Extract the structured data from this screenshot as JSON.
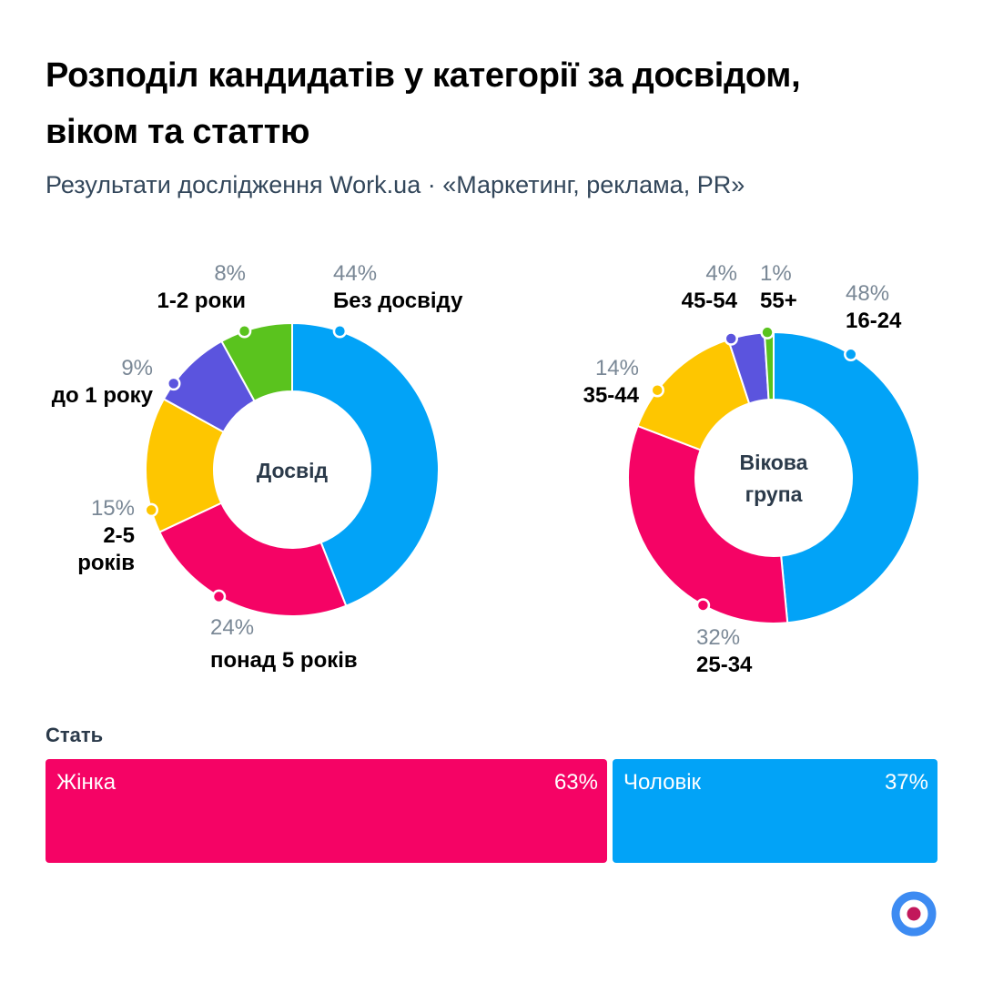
{
  "title_line1": "Розподіл кандидатів у категорії за досвідом,",
  "title_line2": "віком та статтю",
  "subtitle": "Результати дослідження Work.ua · «Маркетинг, реклама, PR»",
  "colors": {
    "blue": "#02A3F7",
    "pink": "#F50365",
    "yellow": "#FEC600",
    "purple": "#5B54DE",
    "green": "#5AC31E"
  },
  "chart_data": [
    {
      "type": "pie",
      "title": "Досвід",
      "categories": [
        "Без досвіду",
        "понад 5 років",
        "2-5 років",
        "до 1 року",
        "1-2 роки"
      ],
      "values": [
        44,
        24,
        15,
        9,
        8
      ],
      "labels": [
        "44%",
        "24%",
        "15%",
        "9%",
        "8%"
      ],
      "colors": [
        "#02A3F7",
        "#F50365",
        "#FEC600",
        "#5B54DE",
        "#5AC31E"
      ]
    },
    {
      "type": "pie",
      "title": "Вікова група",
      "categories": [
        "16-24",
        "25-34",
        "35-44",
        "45-54",
        "55+"
      ],
      "values": [
        48,
        32,
        14,
        4,
        1
      ],
      "labels": [
        "48%",
        "32%",
        "14%",
        "4%",
        "1%"
      ],
      "colors": [
        "#02A3F7",
        "#F50365",
        "#FEC600",
        "#5B54DE",
        "#5AC31E"
      ]
    },
    {
      "type": "bar",
      "title": "Стать",
      "categories": [
        "Жінка",
        "Чоловік"
      ],
      "values": [
        63,
        37
      ],
      "labels": [
        "63%",
        "37%"
      ],
      "colors": [
        "#F50365",
        "#02A3F7"
      ]
    }
  ],
  "donut1": {
    "center_line1": "Досвід",
    "seg0": {
      "pct": "44%",
      "cat": "Без досвіду"
    },
    "seg1": {
      "pct": "24%",
      "cat": "понад 5 років"
    },
    "seg2": {
      "pct": "15%",
      "cat1": "2-5",
      "cat2": "років"
    },
    "seg3": {
      "pct": "9%",
      "cat": "до 1 року"
    },
    "seg4": {
      "pct": "8%",
      "cat": "1-2 роки"
    }
  },
  "donut2": {
    "center_line1": "Вікова",
    "center_line2": "група",
    "seg0": {
      "pct": "48%",
      "cat": "16-24"
    },
    "seg1": {
      "pct": "32%",
      "cat": "25-34"
    },
    "seg2": {
      "pct": "14%",
      "cat": "35-44"
    },
    "seg3": {
      "pct": "4%",
      "cat": "45-54"
    },
    "seg4": {
      "pct": "1%",
      "cat": "55+"
    }
  },
  "gender": {
    "title": "Стать",
    "female_label": "Жінка",
    "female_value": "63%",
    "male_label": "Чоловік",
    "male_value": "37%"
  }
}
